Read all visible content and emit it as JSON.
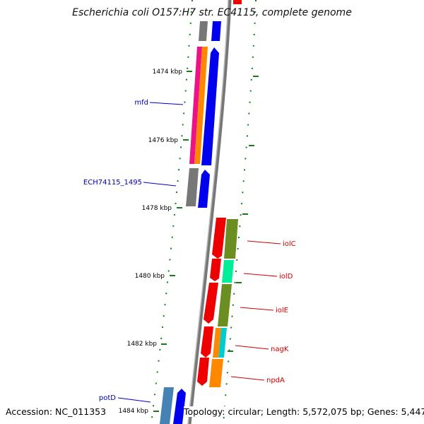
{
  "title": "Escherichia coli O157:H7 str. EC4115, complete genome",
  "footer": {
    "accession": "Accession: NC_011353",
    "summary": "Topology: circular; Length: 5,572,075 bp; Genes: 5,447"
  },
  "kbp_labels": [
    "1474 kbp",
    "1476 kbp",
    "1478 kbp",
    "1480 kbp",
    "1482 kbp",
    "1484 kbp"
  ],
  "genes_left": [
    {
      "name": "mfd",
      "color": "#0000aa"
    },
    {
      "name": "ECH74115_1495",
      "color": "#0000aa"
    },
    {
      "name": "potD",
      "color": "#0000aa"
    }
  ],
  "genes_right": [
    {
      "name": "iolC",
      "color": "#cc0000"
    },
    {
      "name": "iolD",
      "color": "#cc0000"
    },
    {
      "name": "iolE",
      "color": "#cc0000"
    },
    {
      "name": "nagK",
      "color": "#cc0000"
    },
    {
      "name": "npdA",
      "color": "#cc0000"
    }
  ],
  "colors": {
    "backbone": "#888888",
    "tick": "#1a7a1a",
    "forward_gene": "#0000ee",
    "reverse_gene": "#ee0000",
    "gray_block": "#777777",
    "magenta": "#ee1188",
    "orange": "#ff8800",
    "olive": "#6b8e23",
    "spring_green": "#00ee99",
    "cyan": "#00cccc",
    "steel_blue": "#4682b4"
  }
}
